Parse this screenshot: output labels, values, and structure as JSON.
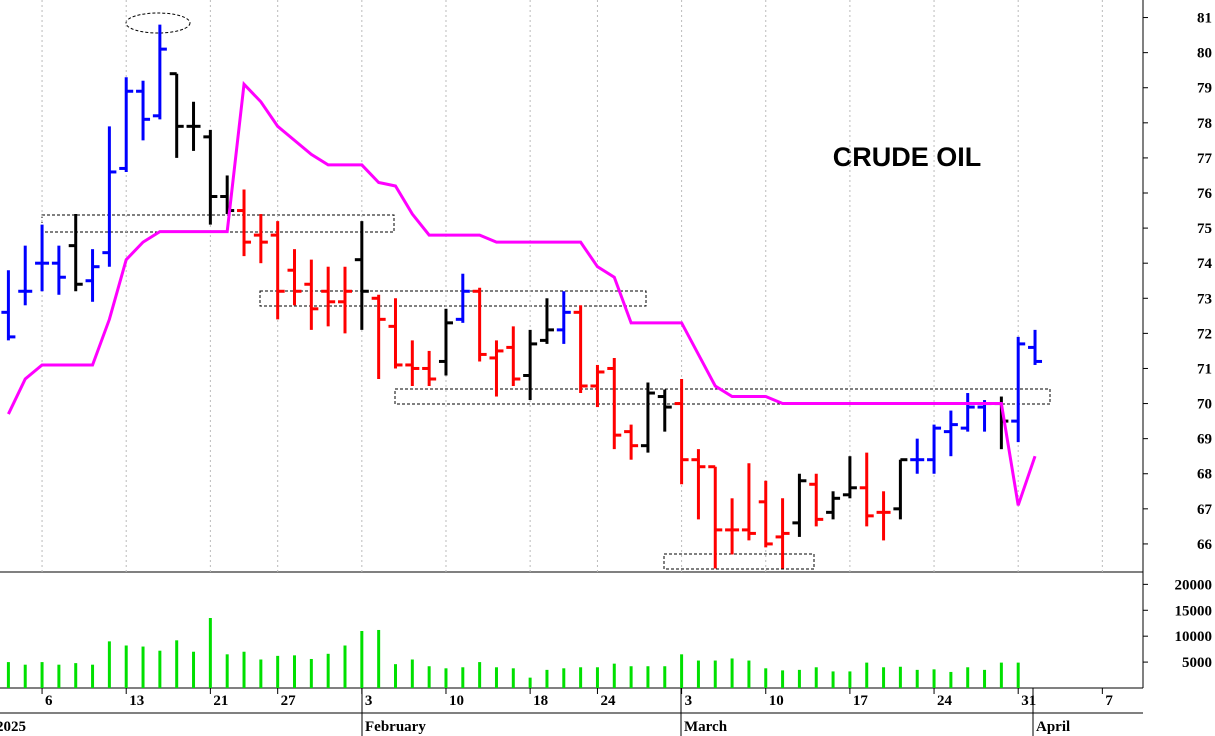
{
  "chart_data": {
    "type": "ohlc",
    "title": "CRUDE OIL",
    "categories": [
      null,
      null,
      "6",
      null,
      null,
      null,
      null,
      "13",
      null,
      null,
      null,
      null,
      "21",
      null,
      null,
      null,
      "27",
      null,
      null,
      null,
      null,
      "3",
      null,
      null,
      null,
      null,
      "10",
      null,
      null,
      null,
      null,
      "18",
      null,
      null,
      null,
      "24",
      null,
      null,
      null,
      null,
      "3",
      null,
      null,
      null,
      null,
      "10",
      null,
      null,
      null,
      null,
      "17",
      null,
      null,
      null,
      null,
      "24",
      null,
      null,
      null,
      null,
      "31",
      null,
      null,
      null,
      null,
      "7"
    ],
    "months": [
      "2025",
      "February",
      "March",
      "April"
    ],
    "open": [
      72.6,
      73.2,
      74.0,
      74.0,
      74.5,
      73.5,
      74.3,
      76.7,
      78.9,
      78.2,
      79.4,
      77.9,
      77.6,
      75.9,
      75.5,
      74.8,
      74.8,
      73.8,
      73.4,
      73.2,
      72.9,
      74.1,
      73.0,
      72.2,
      71.1,
      71.0,
      71.2,
      72.4,
      73.2,
      71.3,
      71.6,
      70.8,
      71.8,
      72.1,
      72.6,
      70.5,
      71.0,
      69.2,
      68.8,
      70.2,
      70.0,
      68.4,
      68.2,
      66.4,
      66.4,
      67.2,
      66.2,
      66.6,
      67.7,
      66.9,
      67.4,
      67.6,
      66.9,
      67.0,
      68.4,
      68.4,
      69.2,
      69.3,
      69.9,
      70.0,
      69.5,
      71.6,
      null,
      null,
      null,
      null
    ],
    "high": [
      73.8,
      74.5,
      75.1,
      74.5,
      75.4,
      74.4,
      77.9,
      79.3,
      79.2,
      80.8,
      79.4,
      78.6,
      77.8,
      76.5,
      76.1,
      75.4,
      75.2,
      74.4,
      74.1,
      73.9,
      73.9,
      75.2,
      73.1,
      73.0,
      71.8,
      71.5,
      72.7,
      73.7,
      73.3,
      71.8,
      72.2,
      72.1,
      73.0,
      73.2,
      72.8,
      71.1,
      71.3,
      69.4,
      70.6,
      70.4,
      70.7,
      68.7,
      68.2,
      67.3,
      68.3,
      67.8,
      67.3,
      68.0,
      68.0,
      67.5,
      68.5,
      68.6,
      67.5,
      68.4,
      69.0,
      69.4,
      69.8,
      70.3,
      70.1,
      70.2,
      71.9,
      72.1,
      null,
      null,
      null,
      null
    ],
    "low": [
      71.8,
      72.8,
      73.2,
      73.1,
      73.2,
      72.9,
      73.9,
      76.6,
      77.5,
      78.1,
      77.0,
      77.2,
      75.1,
      75.4,
      74.2,
      74.0,
      72.4,
      72.8,
      72.1,
      72.2,
      72.0,
      72.1,
      70.7,
      71.0,
      70.5,
      70.5,
      70.8,
      72.3,
      71.2,
      70.2,
      70.5,
      70.1,
      71.7,
      71.7,
      70.3,
      69.9,
      68.7,
      68.4,
      68.6,
      69.2,
      67.7,
      66.7,
      65.3,
      65.7,
      66.1,
      65.9,
      65.3,
      66.2,
      66.5,
      66.7,
      67.3,
      66.5,
      66.1,
      66.7,
      68.0,
      68.0,
      68.5,
      69.2,
      69.2,
      68.7,
      68.9,
      71.1,
      null,
      null,
      null,
      null
    ],
    "close": [
      71.9,
      73.2,
      74.0,
      73.6,
      73.4,
      73.9,
      76.6,
      78.9,
      78.1,
      80.1,
      77.9,
      77.9,
      75.9,
      75.5,
      74.6,
      74.6,
      73.2,
      73.2,
      72.7,
      72.9,
      73.2,
      73.2,
      72.4,
      71.1,
      71.0,
      70.7,
      72.3,
      73.2,
      71.4,
      71.5,
      70.7,
      71.7,
      72.1,
      72.6,
      70.5,
      70.9,
      69.1,
      68.8,
      70.3,
      69.9,
      68.4,
      68.2,
      66.4,
      66.4,
      66.3,
      66.0,
      66.3,
      67.8,
      66.7,
      67.3,
      67.6,
      66.8,
      66.9,
      68.4,
      68.4,
      69.3,
      69.4,
      69.9,
      70.0,
      69.5,
      71.7,
      71.2,
      null,
      null,
      null,
      null
    ],
    "bar_colors": [
      "#0000ff",
      "#0000ff",
      "#0000ff",
      "#0000ff",
      "#000000",
      "#0000ff",
      "#0000ff",
      "#0000ff",
      "#0000ff",
      "#0000ff",
      "#000000",
      "#000000",
      "#000000",
      "#000000",
      "#ff0000",
      "#ff0000",
      "#ff0000",
      "#ff0000",
      "#ff0000",
      "#ff0000",
      "#ff0000",
      "#000000",
      "#ff0000",
      "#ff0000",
      "#ff0000",
      "#ff0000",
      "#000000",
      "#0000ff",
      "#ff0000",
      "#ff0000",
      "#ff0000",
      "#000000",
      "#000000",
      "#0000ff",
      "#ff0000",
      "#ff0000",
      "#ff0000",
      "#ff0000",
      "#000000",
      "#000000",
      "#ff0000",
      "#ff0000",
      "#ff0000",
      "#ff0000",
      "#ff0000",
      "#ff0000",
      "#ff0000",
      "#000000",
      "#ff0000",
      "#000000",
      "#000000",
      "#ff0000",
      "#ff0000",
      "#000000",
      "#0000ff",
      "#0000ff",
      "#0000ff",
      "#0000ff",
      "#0000ff",
      "#000000",
      "#0000ff",
      "#0000ff",
      null,
      null,
      null,
      null
    ],
    "line": {
      "color": "#ff00ff",
      "values": [
        69.7,
        70.7,
        71.1,
        71.1,
        71.1,
        71.1,
        72.4,
        74.1,
        74.6,
        74.9,
        74.9,
        74.9,
        74.9,
        74.9,
        79.1,
        78.6,
        77.9,
        77.5,
        77.1,
        76.8,
        76.8,
        76.8,
        76.3,
        76.2,
        75.4,
        74.8,
        74.8,
        74.8,
        74.8,
        74.6,
        74.6,
        74.6,
        74.6,
        74.6,
        74.6,
        73.9,
        73.6,
        72.3,
        72.3,
        72.3,
        72.3,
        71.4,
        70.5,
        70.2,
        70.2,
        70.2,
        70.0,
        70.0,
        70.0,
        70.0,
        70.0,
        70.0,
        70.0,
        70.0,
        70.0,
        70.0,
        70.0,
        70.0,
        70.0,
        70.0,
        67.1,
        68.5,
        null,
        null,
        null,
        null
      ]
    },
    "volume": {
      "color": "#00e000",
      "values": [
        5000,
        4500,
        5000,
        4500,
        4800,
        4500,
        9000,
        8200,
        8000,
        7200,
        9200,
        7000,
        13500,
        6500,
        7000,
        5500,
        6200,
        6300,
        5600,
        6600,
        8200,
        11000,
        11200,
        4600,
        5500,
        4200,
        3800,
        4000,
        5000,
        4000,
        3800,
        2000,
        3500,
        3800,
        4000,
        4000,
        4700,
        4200,
        4200,
        4200,
        6500,
        5300,
        5300,
        5700,
        5300,
        3800,
        3400,
        3500,
        4000,
        3200,
        3200,
        4900,
        4000,
        4100,
        3500,
        3600,
        3100,
        4000,
        3500,
        4900,
        4900,
        null,
        null,
        null,
        null,
        null
      ]
    },
    "ylim": [
      65.2,
      81.5
    ],
    "yticks": [
      66,
      67,
      68,
      69,
      70,
      71,
      72,
      73,
      74,
      75,
      76,
      77,
      78,
      79,
      80,
      81
    ],
    "volume_ylim": [
      0,
      22000
    ],
    "volume_yticks": [
      5000,
      10000,
      15000,
      20000
    ]
  }
}
